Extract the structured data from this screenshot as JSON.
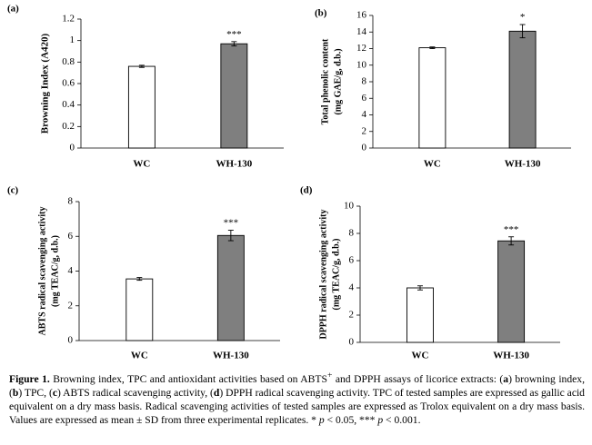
{
  "chart_data": [
    {
      "type": "bar",
      "panel_label": "(a)",
      "categories": [
        "WC",
        "WH-130"
      ],
      "values": [
        0.76,
        0.97
      ],
      "errors": [
        0.01,
        0.02
      ],
      "significance": [
        "",
        "***"
      ],
      "ylabel": "Browning Index (A420)",
      "ylim": [
        0,
        1.2
      ],
      "yticks": [
        "0",
        "0.2",
        "0.4",
        "0.6",
        "0.8",
        "1",
        "1.2"
      ],
      "bar_colors": [
        "#ffffff",
        "#7f7f7f"
      ],
      "grid": false
    },
    {
      "type": "bar",
      "panel_label": "(b)",
      "categories": [
        "WC",
        "WH-130"
      ],
      "values": [
        12.1,
        14.1
      ],
      "errors": [
        0.1,
        0.8
      ],
      "significance": [
        "",
        "*"
      ],
      "ylabel": [
        "Total phenolic content",
        "(mg GAE/g, d.b.)"
      ],
      "ylim": [
        0,
        16
      ],
      "yticks": [
        "0",
        "2",
        "4",
        "6",
        "8",
        "10",
        "12",
        "14",
        "16"
      ],
      "bar_colors": [
        "#ffffff",
        "#7f7f7f"
      ],
      "grid": false
    },
    {
      "type": "bar",
      "panel_label": "(c)",
      "categories": [
        "WC",
        "WH-130"
      ],
      "values": [
        3.55,
        6.05
      ],
      "errors": [
        0.08,
        0.3
      ],
      "significance": [
        "",
        "***"
      ],
      "ylabel": [
        "ABTS radical scavenging activity",
        "(mg TEAC/g, d.b.)"
      ],
      "ylim": [
        0,
        8
      ],
      "yticks": [
        "0",
        "2",
        "4",
        "6",
        "8"
      ],
      "bar_colors": [
        "#ffffff",
        "#7f7f7f"
      ],
      "grid": false
    },
    {
      "type": "bar",
      "panel_label": "(d)",
      "categories": [
        "WC",
        "WH-130"
      ],
      "values": [
        4.0,
        7.45
      ],
      "errors": [
        0.15,
        0.3
      ],
      "significance": [
        "",
        "***"
      ],
      "ylabel": [
        "DPPH radical scavenging activity",
        "(mg TEAC/g, d.b.)"
      ],
      "ylim": [
        0,
        10
      ],
      "yticks": [
        "0",
        "2",
        "4",
        "6",
        "8",
        "10"
      ],
      "bar_colors": [
        "#ffffff",
        "#7f7f7f"
      ],
      "grid": false
    }
  ],
  "caption": {
    "figure_label": "Figure 1.",
    "text_1": " Browning index, TPC and antioxidant activities based on ABTS",
    "sup_plus": "+",
    "text_2": " and DPPH assays of licorice extracts: (",
    "a": "a",
    "text_3": ") browning index, (",
    "b": "b",
    "text_4": ") TPC, (",
    "c": "c",
    "text_5": ") ABTS radical scavenging activity, (",
    "d": "d",
    "text_6": ") DPPH radical scavenging activity. TPC of tested samples are expressed as gallic acid equivalent on a dry mass basis. Radical scavenging activities of tested samples are expressed as Trolox equivalent on a dry mass basis. Values are expressed as mean ± SD from three experimental replicates. * ",
    "p1": "p",
    "text_7": " < 0.05, *** ",
    "p2": "p",
    "text_8": " < 0.001."
  }
}
